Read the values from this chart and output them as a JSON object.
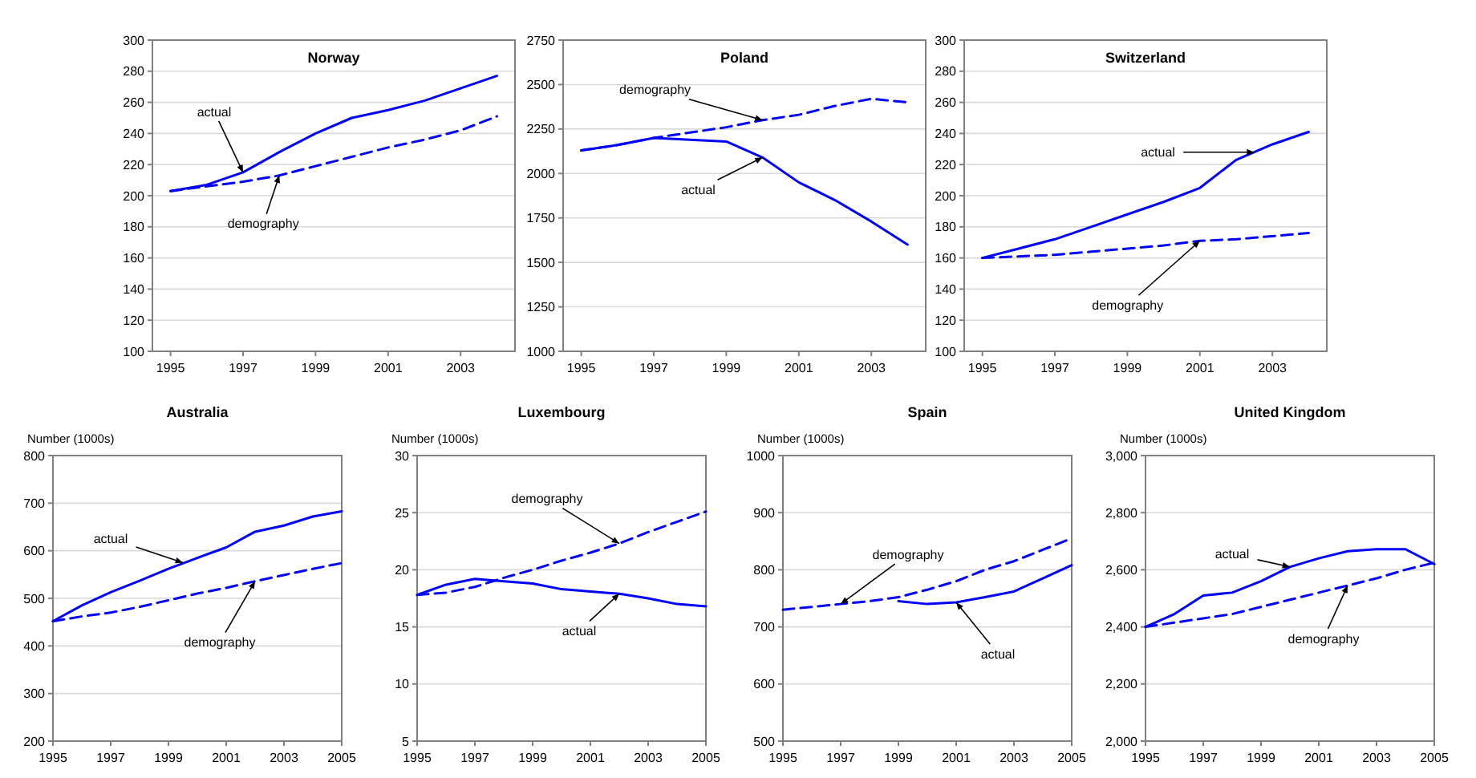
{
  "chart_data": [
    {
      "type": "line",
      "title": "Norway",
      "x": [
        1995,
        1996,
        1997,
        1998,
        1999,
        2000,
        2001,
        2002,
        2003,
        2004
      ],
      "xlim": [
        1994.5,
        2004.5
      ],
      "xticks": [
        1995,
        1997,
        1999,
        2001,
        2003
      ],
      "ylim": [
        100,
        300
      ],
      "yticks": [
        100,
        120,
        140,
        160,
        180,
        200,
        220,
        240,
        260,
        280,
        300
      ],
      "grid": "y",
      "series": [
        {
          "color": "#0000ff",
          "line_style": "solid",
          "values": [
            203,
            207,
            215,
            228,
            240,
            250,
            255,
            261,
            269,
            277
          ]
        },
        {
          "color": "#0000ff",
          "line_style": "dashed",
          "values": [
            203,
            206,
            209,
            213,
            219,
            225,
            231,
            236,
            242,
            251
          ]
        }
      ],
      "annotations": [
        {
          "text": "actual",
          "x": 1997,
          "y": 215
        },
        {
          "text": "demography",
          "x": 1998,
          "y": 213
        }
      ]
    },
    {
      "type": "line",
      "title": "Poland",
      "x": [
        1995,
        1996,
        1997,
        1998,
        1999,
        2000,
        2001,
        2002,
        2003,
        2004
      ],
      "xlim": [
        1994.5,
        2004.5
      ],
      "xticks": [
        1995,
        1997,
        1999,
        2001,
        2003
      ],
      "ylim": [
        1000,
        2750
      ],
      "yticks": [
        1000,
        1250,
        1500,
        1750,
        2000,
        2250,
        2500,
        2750
      ],
      "grid": "y",
      "series": [
        {
          "color": "#0000ff",
          "line_style": "solid",
          "values": [
            2130,
            2160,
            2200,
            2190,
            2180,
            2090,
            1950,
            1850,
            1730,
            1600
          ]
        },
        {
          "color": "#0000ff",
          "line_style": "dashed",
          "values": [
            2130,
            2160,
            2200,
            2230,
            2260,
            2300,
            2330,
            2380,
            2420,
            2400
          ]
        }
      ],
      "annotations": [
        {
          "text": "demography",
          "x": 2000,
          "y": 2300
        },
        {
          "text": "actual",
          "x": 2000,
          "y": 2090
        }
      ]
    },
    {
      "type": "line",
      "title": "Switzerland",
      "x": [
        1995,
        1996,
        1997,
        1998,
        1999,
        2000,
        2001,
        2002,
        2003,
        2004
      ],
      "xlim": [
        1994.5,
        2004.5
      ],
      "xticks": [
        1995,
        1997,
        1999,
        2001,
        2003
      ],
      "ylim": [
        100,
        300
      ],
      "yticks": [
        100,
        120,
        140,
        160,
        180,
        200,
        220,
        240,
        260,
        280,
        300
      ],
      "grid": "y",
      "series": [
        {
          "color": "#0000ff",
          "line_style": "solid",
          "values": [
            160,
            166,
            172,
            180,
            188,
            196,
            205,
            223,
            233,
            241
          ]
        },
        {
          "color": "#0000ff",
          "line_style": "dashed",
          "values": [
            160,
            161,
            162,
            164,
            166,
            168,
            171,
            172,
            174,
            176
          ]
        }
      ],
      "annotations": [
        {
          "text": "actual",
          "x": 2002.5,
          "y": 228
        },
        {
          "text": "demography",
          "x": 2001,
          "y": 171
        }
      ]
    },
    {
      "type": "line",
      "title": "Australia",
      "ylabel": "Number (1000s)",
      "x": [
        1995,
        1996,
        1997,
        1998,
        1999,
        2000,
        2001,
        2002,
        2003,
        2004,
        2005
      ],
      "xlim": [
        1995,
        2005
      ],
      "xticks": [
        1995,
        1997,
        1999,
        2001,
        2003,
        2005
      ],
      "ylim": [
        200,
        800
      ],
      "yticks": [
        200,
        300,
        400,
        500,
        600,
        700,
        800
      ],
      "grid": "y",
      "series": [
        {
          "color": "#0000ff",
          "line_style": "solid",
          "values": [
            452,
            485,
            513,
            537,
            562,
            585,
            607,
            640,
            653,
            672,
            683
          ]
        },
        {
          "color": "#0000ff",
          "line_style": "dashed",
          "values": [
            452,
            462,
            470,
            482,
            496,
            510,
            522,
            536,
            549,
            562,
            574
          ]
        }
      ],
      "annotations": [
        {
          "text": "actual",
          "x": 1999.5,
          "y": 575
        },
        {
          "text": "demography",
          "x": 2002,
          "y": 536
        }
      ]
    },
    {
      "type": "line",
      "title": "Luxembourg",
      "ylabel": "Number (1000s)",
      "x": [
        1995,
        1996,
        1997,
        1998,
        1999,
        2000,
        2001,
        2002,
        2003,
        2004,
        2005
      ],
      "xlim": [
        1995,
        2005
      ],
      "xticks": [
        1995,
        1997,
        1999,
        2001,
        2003,
        2005
      ],
      "ylim": [
        5,
        30
      ],
      "yticks": [
        5,
        10,
        15,
        20,
        25,
        30
      ],
      "grid": "y",
      "series": [
        {
          "color": "#0000ff",
          "line_style": "solid",
          "values": [
            17.8,
            18.7,
            19.2,
            19.0,
            18.8,
            18.3,
            18.1,
            17.9,
            17.5,
            17.0,
            16.8
          ]
        },
        {
          "color": "#0000ff",
          "line_style": "dashed",
          "values": [
            17.8,
            18.0,
            18.5,
            19.3,
            20.0,
            20.8,
            21.5,
            22.3,
            23.3,
            24.2,
            25.1
          ]
        }
      ],
      "annotations": [
        {
          "text": "demography",
          "x": 2002,
          "y": 22.3
        },
        {
          "text": "actual",
          "x": 2002,
          "y": 17.9
        }
      ]
    },
    {
      "type": "line",
      "title": "Spain",
      "ylabel": "Number (1000s)",
      "x": [
        1995,
        1996,
        1997,
        1998,
        1999,
        2000,
        2001,
        2002,
        2003,
        2004,
        2005
      ],
      "xlim": [
        1995,
        2005
      ],
      "xticks": [
        1995,
        1997,
        1999,
        2001,
        2003,
        2005
      ],
      "ylim": [
        500,
        1000
      ],
      "yticks": [
        500,
        600,
        700,
        800,
        900,
        1000
      ],
      "grid": "y",
      "series": [
        {
          "color": "#0000ff",
          "line_style": "solid",
          "values": [
            null,
            null,
            null,
            null,
            745,
            740,
            743,
            752,
            762,
            785,
            808
          ]
        },
        {
          "color": "#0000ff",
          "line_style": "dashed",
          "values": [
            730,
            735,
            740,
            745,
            752,
            765,
            780,
            800,
            815,
            835,
            855
          ]
        }
      ],
      "annotations": [
        {
          "text": "demography",
          "x": 1997,
          "y": 740
        },
        {
          "text": "actual",
          "x": 2001,
          "y": 743
        }
      ]
    },
    {
      "type": "line",
      "title": "United Kingdom",
      "ylabel": "Number (1000s)",
      "x": [
        1995,
        1996,
        1997,
        1998,
        1999,
        2000,
        2001,
        2002,
        2003,
        2004,
        2005
      ],
      "xlim": [
        1995,
        2005
      ],
      "xticks": [
        1995,
        1997,
        1999,
        2001,
        2003,
        2005
      ],
      "ylim": [
        2000,
        3000
      ],
      "yticks": [
        {
          "value": 2000,
          "label": "2,000"
        },
        {
          "value": 2200,
          "label": "2,200"
        },
        {
          "value": 2400,
          "label": "2,400"
        },
        {
          "value": 2600,
          "label": "2,600"
        },
        {
          "value": 2800,
          "label": "2,800"
        },
        {
          "value": 3000,
          "label": "3,000"
        }
      ],
      "grid": "y",
      "series": [
        {
          "color": "#0000ff",
          "line_style": "solid",
          "values": [
            2400,
            2445,
            2510,
            2520,
            2560,
            2610,
            2640,
            2665,
            2672,
            2672,
            2620
          ]
        },
        {
          "color": "#0000ff",
          "line_style": "dashed",
          "values": [
            2400,
            2415,
            2430,
            2445,
            2470,
            2495,
            2520,
            2545,
            2570,
            2600,
            2625
          ]
        }
      ],
      "annotations": [
        {
          "text": "actual",
          "x": 2000,
          "y": 2610
        },
        {
          "text": "demography",
          "x": 2002,
          "y": 2545
        }
      ]
    }
  ]
}
